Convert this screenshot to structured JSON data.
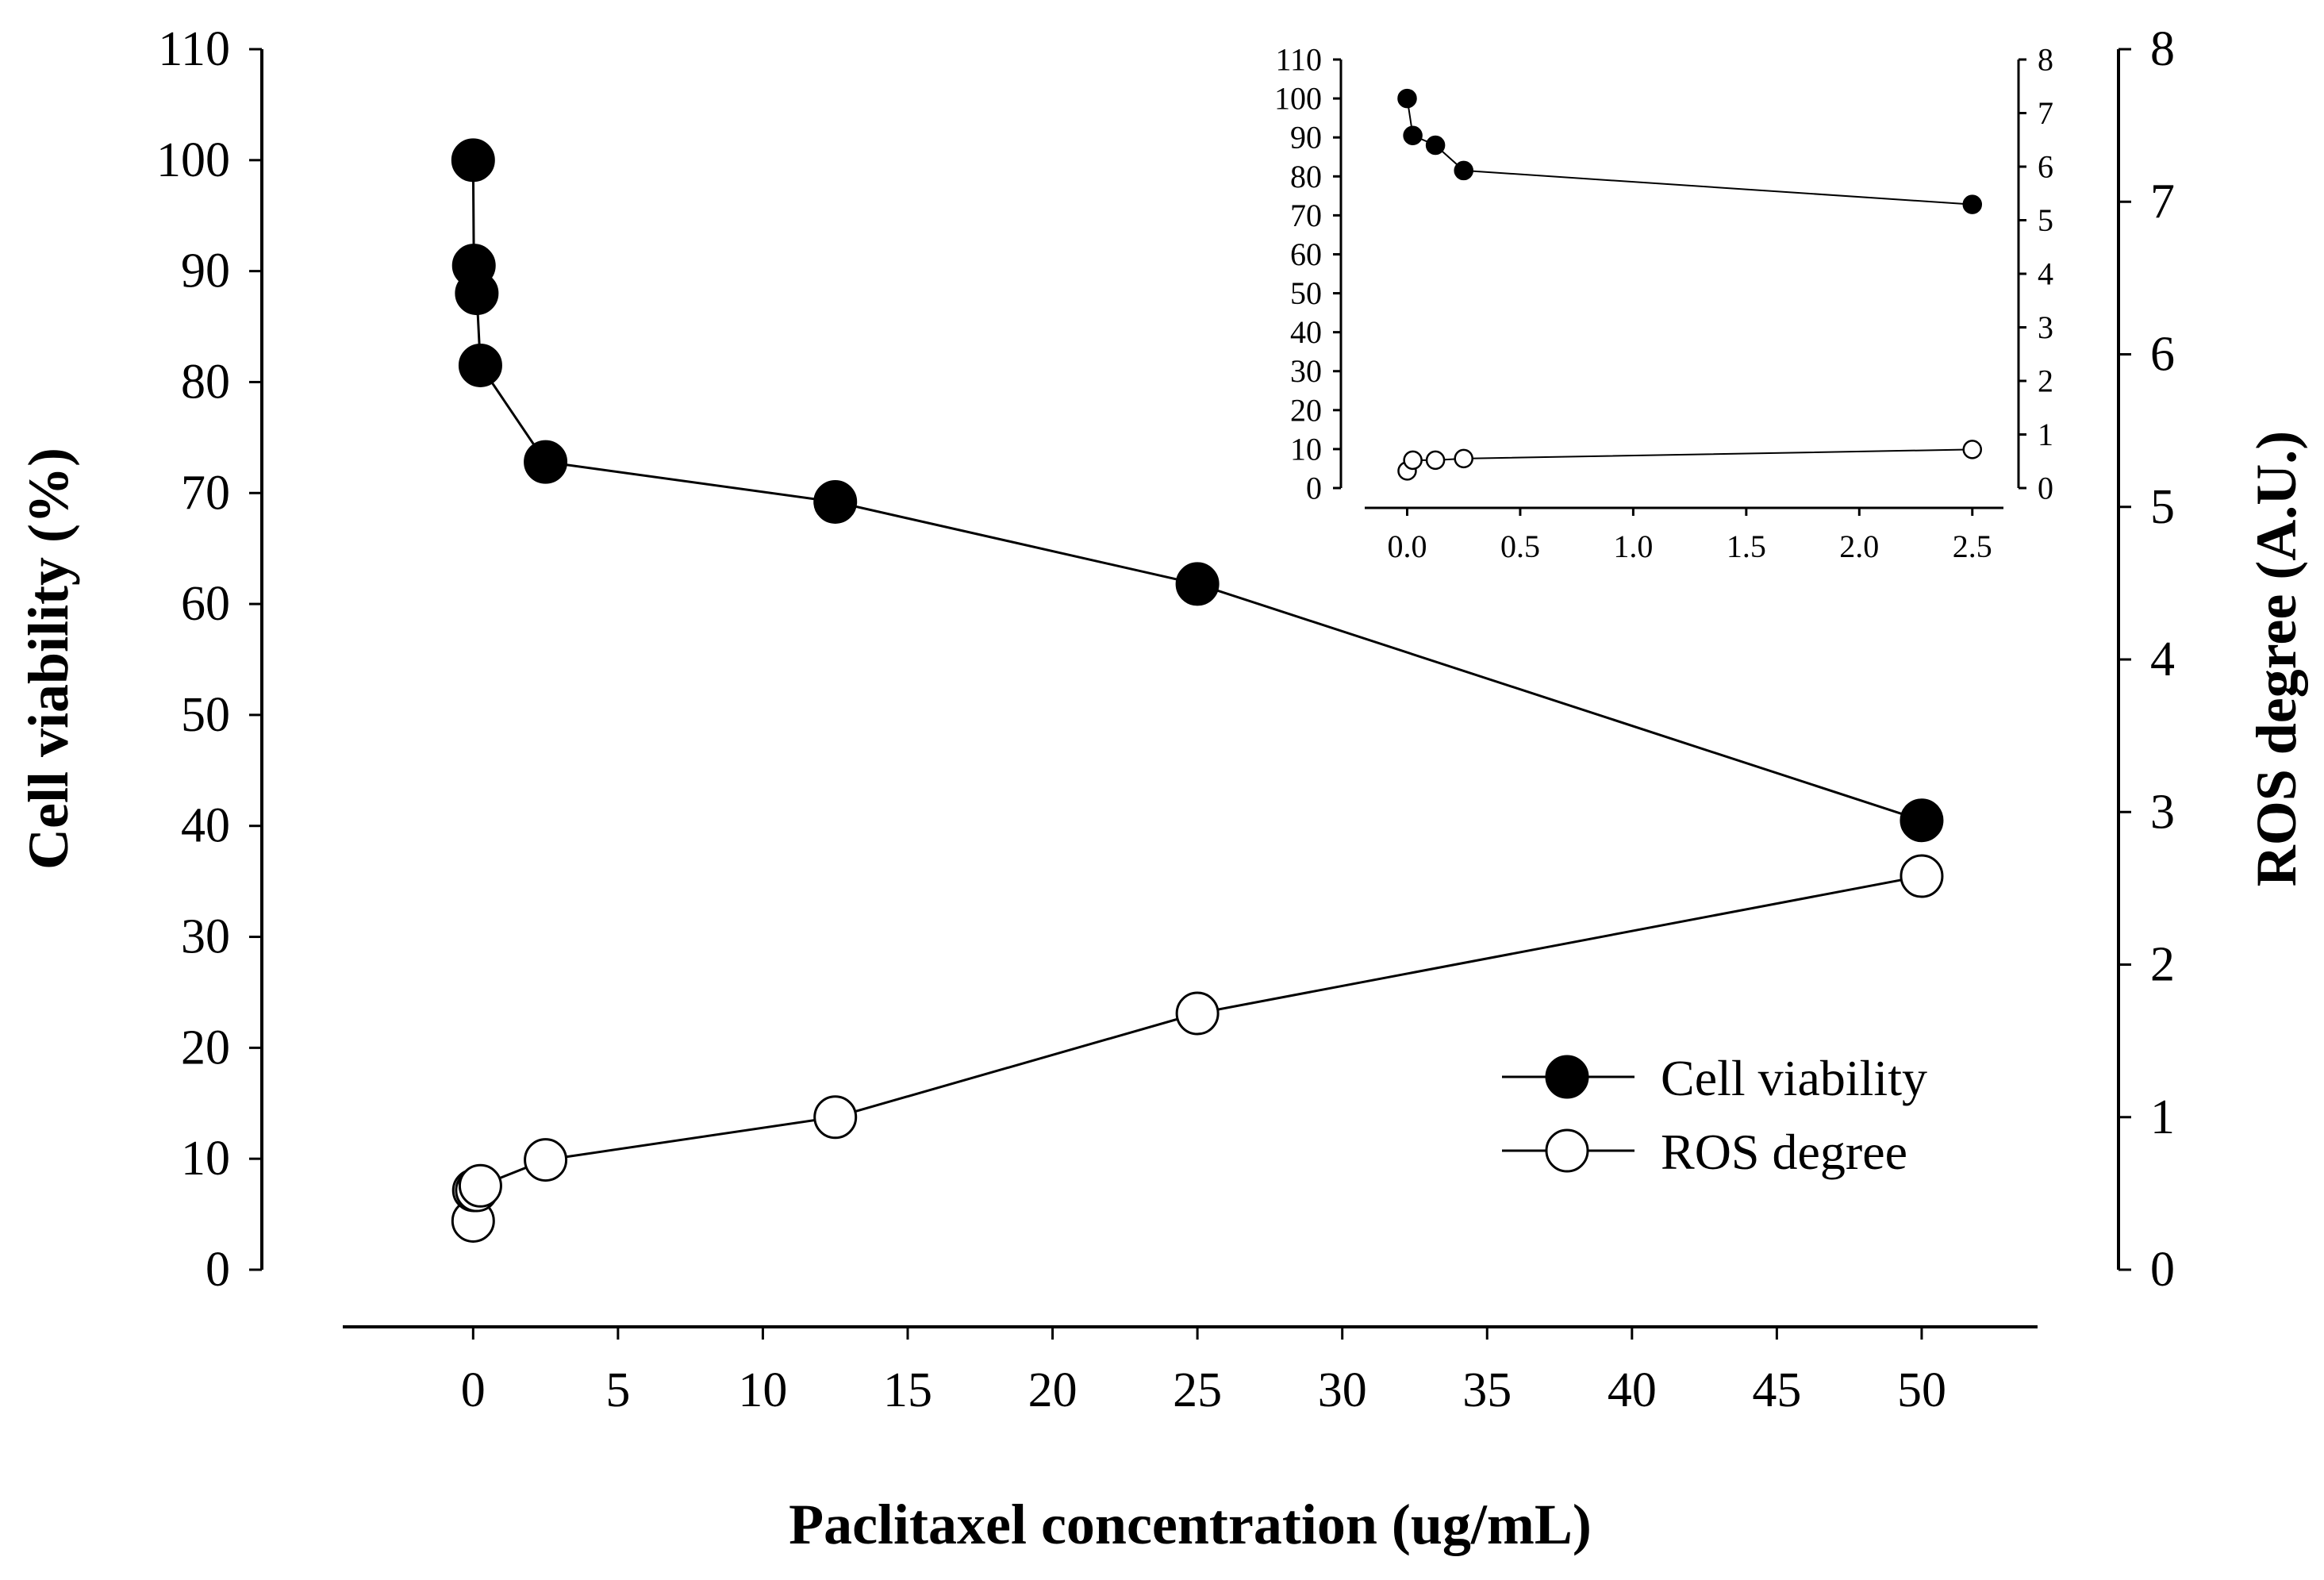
{
  "chart_data": [
    {
      "id": "main",
      "type": "line",
      "xlabel": "Paclitaxel concentration (ug/mL)",
      "ylabel": "Cell viability (%)",
      "y2label": "ROS degree (A.U.)",
      "xlim": [
        -4.5,
        54
      ],
      "ylim": [
        0,
        110
      ],
      "y2lim": [
        0,
        8
      ],
      "x_ticks": [
        0,
        5,
        10,
        15,
        20,
        25,
        30,
        35,
        40,
        45,
        50
      ],
      "y_ticks": [
        0,
        10,
        20,
        30,
        40,
        50,
        60,
        70,
        80,
        90,
        100,
        110
      ],
      "y2_ticks": [
        0,
        1,
        2,
        3,
        4,
        5,
        6,
        7,
        8
      ],
      "grid": false,
      "legend_position": "bottom-right",
      "series": [
        {
          "name": "Cell viability",
          "axis": "left",
          "marker": "filled-circle",
          "x": [
            0,
            0.025,
            0.125,
            0.25,
            2.5,
            12.5,
            25,
            50
          ],
          "values": [
            100,
            90.5,
            88,
            81.5,
            72.8,
            69.2,
            61.8,
            40.5
          ]
        },
        {
          "name": "ROS degree",
          "axis": "right",
          "marker": "open-circle",
          "x": [
            0,
            0.025,
            0.125,
            0.25,
            2.5,
            12.5,
            25,
            50
          ],
          "values": [
            0.32,
            0.52,
            0.52,
            0.55,
            0.72,
            1.0,
            1.68,
            2.58
          ]
        }
      ]
    },
    {
      "id": "inset",
      "type": "line",
      "xlim": [
        -0.1,
        2.55
      ],
      "ylim": [
        0,
        110
      ],
      "y2lim": [
        0,
        8
      ],
      "x_ticks": [
        "0.0",
        "0.5",
        "1.0",
        "1.5",
        "2.0",
        "2.5"
      ],
      "y_ticks": [
        0,
        10,
        20,
        30,
        40,
        50,
        60,
        70,
        80,
        90,
        100,
        110
      ],
      "y2_ticks": [
        0,
        1,
        2,
        3,
        4,
        5,
        6,
        7,
        8
      ],
      "series": [
        {
          "name": "Cell viability",
          "axis": "left",
          "marker": "filled-circle",
          "x": [
            0,
            0.025,
            0.125,
            0.25,
            2.5
          ],
          "values": [
            100,
            90.5,
            88,
            81.5,
            72.8
          ]
        },
        {
          "name": "ROS degree",
          "axis": "right",
          "marker": "open-circle",
          "x": [
            0,
            0.025,
            0.125,
            0.25,
            2.5
          ],
          "values": [
            0.32,
            0.52,
            0.52,
            0.55,
            0.72
          ]
        }
      ]
    }
  ]
}
